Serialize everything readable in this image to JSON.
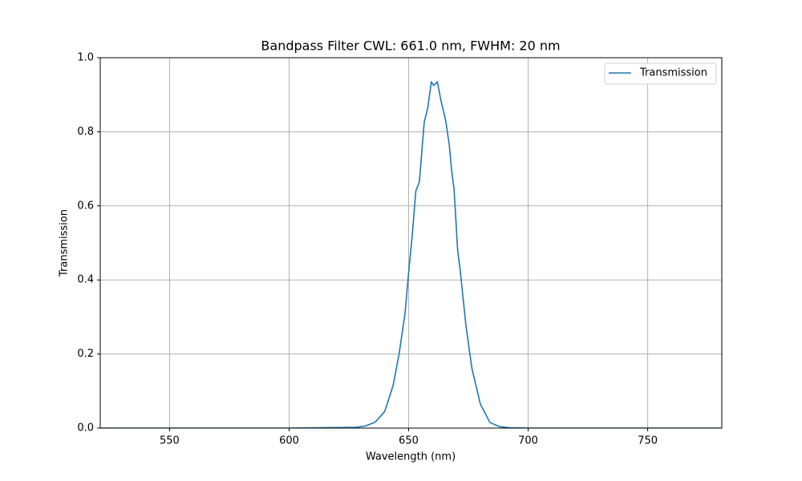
{
  "chart_data": {
    "type": "line",
    "title": "Bandpass Filter CWL: 661.0 nm, FWHM: 20 nm",
    "x_label": "Wavelength (nm)",
    "y_label": "Transmission",
    "x": [
      521,
      600,
      628,
      632,
      636,
      640,
      643.5,
      646,
      648.5,
      650,
      651.5,
      653,
      654.5,
      656.5,
      658,
      659.5,
      660.5,
      662,
      663.5,
      665.5,
      667,
      668,
      669,
      670.5,
      671.5,
      674,
      676.5,
      680,
      684,
      688,
      692,
      700,
      781
    ],
    "series": [
      {
        "name": "Transmission",
        "color": "#1f77b4",
        "values": [
          0,
          0,
          0.002,
          0.006,
          0.016,
          0.045,
          0.115,
          0.2,
          0.31,
          0.42,
          0.52,
          0.64,
          0.665,
          0.825,
          0.865,
          0.935,
          0.925,
          0.935,
          0.885,
          0.83,
          0.765,
          0.695,
          0.645,
          0.48,
          0.43,
          0.275,
          0.16,
          0.065,
          0.015,
          0.004,
          0.001,
          0,
          0
        ]
      }
    ],
    "xlim": [
      521,
      781
    ],
    "ylim": [
      0,
      1
    ],
    "xticks": [
      550,
      600,
      650,
      700,
      750
    ],
    "yticks": [
      {
        "value": 0,
        "label": "0.0"
      },
      {
        "value": 0.2,
        "label": "0.2"
      },
      {
        "value": 0.4,
        "label": "0.4"
      },
      {
        "value": 0.6,
        "label": "0.6"
      },
      {
        "value": 0.8,
        "label": "0.8"
      },
      {
        "value": 1,
        "label": "1.0"
      }
    ],
    "grid": true,
    "legend": "upper right"
  }
}
